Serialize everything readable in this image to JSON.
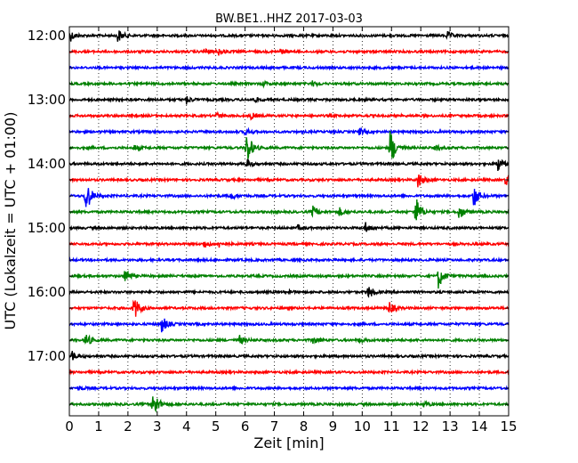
{
  "chart_data": {
    "type": "line",
    "title": "BW.BE1..HHZ 2017-03-03",
    "xlabel": "Zeit  [min]",
    "ylabel": "UTC (Lokalzeit = UTC + 01:00)",
    "xlim": [
      0,
      15
    ],
    "x_ticks": [
      "0",
      "1",
      "2",
      "3",
      "4",
      "5",
      "6",
      "7",
      "8",
      "9",
      "10",
      "11",
      "12",
      "13",
      "14",
      "15"
    ],
    "y_tick_labels": [
      "12:00",
      "13:00",
      "14:00",
      "15:00",
      "16:00",
      "17:00"
    ],
    "grid": "vertical dotted",
    "trace_interval_minutes": 15,
    "colors": [
      "#000000",
      "#ff0000",
      "#0000ff",
      "#008000"
    ],
    "traces": [
      {
        "start": "12:00",
        "events": [
          {
            "t": 1.65,
            "amp": 0.45
          },
          {
            "t": 12.9,
            "amp": 0.25
          },
          {
            "t": 0.05,
            "amp": 0.3
          }
        ]
      },
      {
        "start": "12:15",
        "events": [
          {
            "t": 4.6,
            "amp": 0.2
          },
          {
            "t": 5.1,
            "amp": 0.2
          },
          {
            "t": 7.2,
            "amp": 0.15
          }
        ]
      },
      {
        "start": "12:30",
        "events": []
      },
      {
        "start": "12:45",
        "events": [
          {
            "t": 6.6,
            "amp": 0.15
          },
          {
            "t": 8.3,
            "amp": 0.15
          }
        ]
      },
      {
        "start": "13:00",
        "events": [
          {
            "t": 4.0,
            "amp": 0.25
          },
          {
            "t": 6.3,
            "amp": 0.15
          }
        ]
      },
      {
        "start": "13:15",
        "events": [
          {
            "t": 5.0,
            "amp": 0.2
          },
          {
            "t": 6.2,
            "amp": 0.2
          }
        ]
      },
      {
        "start": "13:30",
        "events": [
          {
            "t": 6.0,
            "amp": 0.25
          },
          {
            "t": 9.9,
            "amp": 0.2
          }
        ]
      },
      {
        "start": "13:45",
        "events": [
          {
            "t": 6.05,
            "amp": 1.2
          },
          {
            "t": 10.95,
            "amp": 1.3
          },
          {
            "t": 2.2,
            "amp": 0.2
          },
          {
            "t": 12.5,
            "amp": 0.2
          }
        ]
      },
      {
        "start": "14:00",
        "events": [
          {
            "t": 6.05,
            "amp": 0.3
          },
          {
            "t": 14.6,
            "amp": 0.6
          }
        ]
      },
      {
        "start": "14:15",
        "events": [
          {
            "t": 11.9,
            "amp": 0.55
          },
          {
            "t": 14.9,
            "amp": 0.5
          }
        ]
      },
      {
        "start": "14:30",
        "events": [
          {
            "t": 0.55,
            "amp": 1.3
          },
          {
            "t": 13.8,
            "amp": 0.8
          },
          {
            "t": 5.5,
            "amp": 0.25
          }
        ]
      },
      {
        "start": "14:45",
        "events": [
          {
            "t": 11.8,
            "amp": 1.2
          },
          {
            "t": 13.3,
            "amp": 0.5
          },
          {
            "t": 8.3,
            "amp": 0.4
          },
          {
            "t": 9.2,
            "amp": 0.3
          }
        ]
      },
      {
        "start": "15:00",
        "events": [
          {
            "t": 10.1,
            "amp": 0.35
          },
          {
            "t": 7.8,
            "amp": 0.15
          }
        ]
      },
      {
        "start": "15:15",
        "events": [
          {
            "t": 4.6,
            "amp": 0.25
          },
          {
            "t": 5.1,
            "amp": 0.2
          }
        ]
      },
      {
        "start": "15:30",
        "events": []
      },
      {
        "start": "15:45",
        "events": [
          {
            "t": 1.9,
            "amp": 0.6
          },
          {
            "t": 12.6,
            "amp": 0.8
          }
        ]
      },
      {
        "start": "16:00",
        "events": [
          {
            "t": 10.2,
            "amp": 0.45
          },
          {
            "t": 7.4,
            "amp": 0.15
          }
        ]
      },
      {
        "start": "16:15",
        "events": [
          {
            "t": 2.2,
            "amp": 0.85
          },
          {
            "t": 10.9,
            "amp": 0.45
          }
        ]
      },
      {
        "start": "16:30",
        "events": [
          {
            "t": 3.15,
            "amp": 0.6
          }
        ]
      },
      {
        "start": "16:45",
        "events": [
          {
            "t": 0.55,
            "amp": 0.5
          },
          {
            "t": 5.8,
            "amp": 0.3
          },
          {
            "t": 8.3,
            "amp": 0.25
          },
          {
            "t": 9.9,
            "amp": 0.15
          }
        ]
      },
      {
        "start": "17:00",
        "events": [
          {
            "t": 0.1,
            "amp": 0.3
          }
        ]
      },
      {
        "start": "17:15",
        "events": []
      },
      {
        "start": "17:30",
        "events": [
          {
            "t": 0.3,
            "amp": 0.15
          }
        ]
      },
      {
        "start": "17:45",
        "events": [
          {
            "t": 2.85,
            "amp": 1.1
          },
          {
            "t": 12.1,
            "amp": 0.2
          }
        ]
      }
    ]
  }
}
